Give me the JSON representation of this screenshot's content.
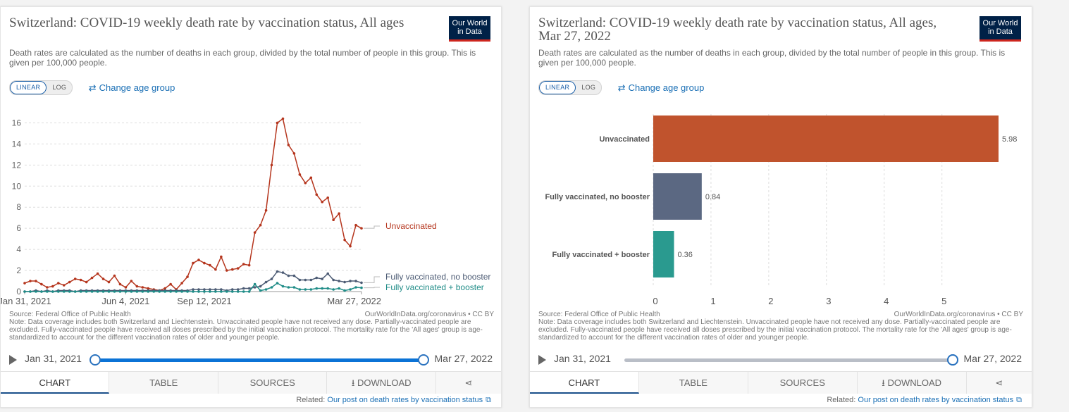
{
  "panels": [
    {
      "title": "Switzerland: COVID-19 weekly death rate by vaccination status, All ages",
      "subtitle": "Death rates are calculated as the number of deaths in each group, divided by the total number of people in this group. This is given per 100,000 people.",
      "logo": "Our World in Data",
      "scale_linear": "LINEAR",
      "scale_log": "LOG",
      "change_age": "Change age group",
      "source": "Source: Federal Office of Public Health",
      "credit": "OurWorldInData.org/coronavirus • CC BY",
      "note": "Note: Data coverage includes both Switzerland and Liechtenstein. Unvaccinated people have not received any dose. Partially-vaccinated people are excluded. Fully-vaccinated people have received all doses prescribed by the initial vaccination protocol. The mortality rate for the 'All ages' group is age-standardized to account for the different vaccination rates of older and younger people.",
      "timeline_start": "Jan 31, 2021",
      "timeline_end": "Mar 27, 2022",
      "timeline_start_pos": 0,
      "timeline_end_pos": 1,
      "tabs": [
        "CHART",
        "TABLE",
        "SOURCES",
        "DOWNLOAD",
        ""
      ],
      "related_prefix": "Related:",
      "related_link": "Our post on death rates by vaccination status"
    },
    {
      "title": "Switzerland: COVID-19 weekly death rate by vaccination status, All ages, Mar 27, 2022",
      "subtitle": "Death rates are calculated as the number of deaths in each group, divided by the total number of people in this group. This is given per 100,000 people.",
      "logo": "Our World in Data",
      "scale_linear": "LINEAR",
      "scale_log": "LOG",
      "change_age": "Change age group",
      "source": "Source: Federal Office of Public Health",
      "credit": "OurWorldInData.org/coronavirus • CC BY",
      "note": "Note: Data coverage includes both Switzerland and Liechtenstein. Unvaccinated people have not received any dose. Partially-vaccinated people are excluded. Fully-vaccinated people have received all doses prescribed by the initial vaccination protocol. The mortality rate for the 'All ages' group is age-standardized to account for the different vaccination rates of older and younger people.",
      "timeline_start": "Jan 31, 2021",
      "timeline_end": "Mar 27, 2022",
      "timeline_start_pos": 1,
      "timeline_end_pos": 1,
      "tabs": [
        "CHART",
        "TABLE",
        "SOURCES",
        "DOWNLOAD",
        ""
      ],
      "related_prefix": "Related:",
      "related_link": "Our post on death rates by vaccination status"
    }
  ],
  "colors": {
    "unvaccinated": "#b5351d",
    "fully_no_booster": "#4c5b74",
    "fully_booster": "#1f8c87",
    "bar_unvaccinated": "#c0532d",
    "bar_no_booster": "#5b6882",
    "bar_booster": "#2a9a8f",
    "accent": "#1a6fb5"
  },
  "chart_data": [
    {
      "type": "line",
      "title": "Switzerland: COVID-19 weekly death rate by vaccination status, All ages",
      "x_ticks": [
        "Jan 31, 2021",
        "Jun 4, 2021",
        "Sep 12, 2021",
        "Mar 27, 2022"
      ],
      "x_tick_weeks": [
        0,
        18,
        32,
        60
      ],
      "y_ticks": [
        0,
        2,
        4,
        6,
        8,
        10,
        12,
        14,
        16
      ],
      "ylim": [
        0,
        16.5
      ],
      "grid": "horizontal dashed",
      "series": [
        {
          "name": "Unvaccinated",
          "values": [
            0.8,
            1.0,
            1.0,
            0.7,
            0.4,
            0.5,
            0.8,
            0.6,
            0.9,
            1.2,
            1.1,
            0.9,
            1.3,
            1.7,
            1.2,
            0.9,
            1.5,
            0.7,
            0.4,
            1.0,
            0.5,
            0.4,
            0.3,
            0.2,
            0.1,
            0.3,
            0.7,
            0.2,
            0.8,
            1.4,
            2.7,
            3.0,
            2.7,
            2.5,
            2.1,
            3.3,
            2.0,
            2.1,
            2.2,
            2.6,
            2.5,
            5.6,
            6.3,
            7.7,
            12.0,
            16.0,
            16.4,
            13.9,
            13.1,
            11.1,
            10.3,
            10.8,
            9.2,
            8.5,
            8.9,
            6.8,
            7.4,
            4.9,
            4.3,
            6.3,
            6.0
          ]
        },
        {
          "name": "Fully vaccinated, no booster",
          "values": [
            0.0,
            0.0,
            0.1,
            0.0,
            0.1,
            0.0,
            0.1,
            0.1,
            0.1,
            0.0,
            0.1,
            0.1,
            0.1,
            0.1,
            0.1,
            0.1,
            0.1,
            0.1,
            0.1,
            0.1,
            0.1,
            0.1,
            0.1,
            0.1,
            0.1,
            0.1,
            0.1,
            0.1,
            0.1,
            0.1,
            0.2,
            0.2,
            0.2,
            0.2,
            0.2,
            0.2,
            0.1,
            0.2,
            0.2,
            0.3,
            0.3,
            0.4,
            0.5,
            0.9,
            1.2,
            1.9,
            1.8,
            1.5,
            1.5,
            1.1,
            1.1,
            1.1,
            1.3,
            1.2,
            1.7,
            1.1,
            1.0,
            0.9,
            1.0,
            1.0,
            0.84
          ]
        },
        {
          "name": "Fully vaccinated + booster",
          "values": [
            0.0,
            0.0,
            0.0,
            0.0,
            0.0,
            0.0,
            0.0,
            0.0,
            0.0,
            0.0,
            0.0,
            0.0,
            0.0,
            0.0,
            0.0,
            0.0,
            0.0,
            0.0,
            0.0,
            0.0,
            0.0,
            0.0,
            0.0,
            0.0,
            0.0,
            0.0,
            0.0,
            0.0,
            0.0,
            0.0,
            0.0,
            0.0,
            0.0,
            0.0,
            0.0,
            0.0,
            0.0,
            0.0,
            0.0,
            0.0,
            0.0,
            0.7,
            0.1,
            0.2,
            0.4,
            0.8,
            0.5,
            0.4,
            0.4,
            0.2,
            0.2,
            0.2,
            0.3,
            0.3,
            0.3,
            0.2,
            0.3,
            0.1,
            0.2,
            0.4,
            0.36
          ]
        }
      ]
    },
    {
      "type": "bar",
      "orientation": "horizontal",
      "title": "Switzerland: COVID-19 weekly death rate by vaccination status, All ages, Mar 27, 2022",
      "categories": [
        "Unvaccinated",
        "Fully vaccinated, no booster",
        "Fully vaccinated + booster"
      ],
      "values": [
        5.98,
        0.84,
        0.36
      ],
      "x_ticks": [
        0,
        1,
        2,
        3,
        4,
        5
      ],
      "xlim": [
        0,
        5.98
      ],
      "grid": "vertical dashed"
    }
  ]
}
